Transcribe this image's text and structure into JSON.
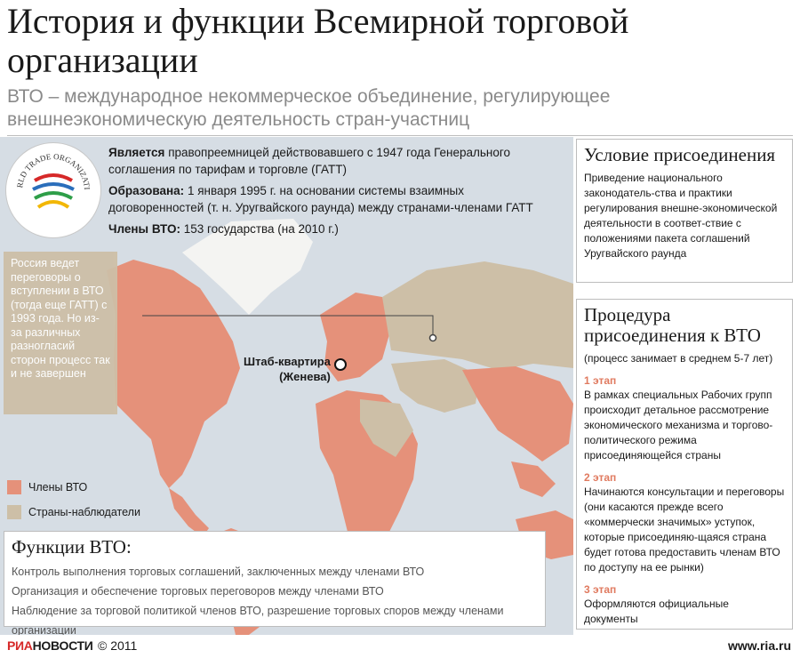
{
  "header": {
    "title": "История и функции Всемирной торговой организации",
    "subtitle": "ВТО – международное некоммерческое объединение, регулирующее внешнеэкономическую деятельность стран-участниц"
  },
  "info": {
    "successor_label": "Является",
    "successor_text": "правопреемницей действовавшего с 1947 года Генерального соглашения по тарифам и торговле (ГАТТ)",
    "founded_label": "Образована:",
    "founded_text": "1 января 1995 г. на основании системы взаимных договоренностей (т. н. Уругвайского раунда) между странами-членами ГАТТ",
    "members_label": "Члены ВТО:",
    "members_text": "153 государства (на 2010 г.)"
  },
  "logo": {
    "text": "WORLD TRADE ORGANIZATION"
  },
  "russia_note": "Россия ведет переговоры о вступлении в ВТО (тогда еще ГАТТ) с 1993 года. Но из-за различных разногласий сторон процесс так и не завершен",
  "hq": {
    "line1": "Штаб-квартира",
    "line2": "(Женева)"
  },
  "legend": {
    "members": "Члены ВТО",
    "observers": "Страны-наблюдатели",
    "members_color": "#e5917a",
    "observers_color": "#cdbfa7"
  },
  "functions": {
    "title": "Функции ВТО:",
    "items": [
      "Контроль выполнения торговых соглашений, заключенных между членами ВТО",
      "Организация и обеспечение торговых переговоров между членами ВТО",
      "Наблюдение за торговой политикой членов ВТО,  разрешение торговых споров между членами организации"
    ]
  },
  "accession": {
    "title": "Условие присоединения",
    "text": "Приведение национального законодатель-ства и практики регулирования внешне-экономической деятельности в соответ-ствие с положениями пакета соглашений Уругвайского раунда"
  },
  "procedure": {
    "title": "Процедура присоединения к ВТО",
    "note": "(процесс занимает в среднем 5-7 лет)",
    "stages": [
      {
        "label": "1 этап",
        "text": "В рамках специальных Рабочих групп происходит детальное рассмотрение экономического механизма и торгово-политического режима присоединяющейся страны"
      },
      {
        "label": "2 этап",
        "text": "Начинаются консультации и переговоры (они касаются прежде всего «коммерчески значимых» уступок, которые присоединяю-щаяся страна будет готова предоставить членам ВТО по доступу на ее рынки)"
      },
      {
        "label": "3 этап",
        "text": "Оформляются официальные документы"
      }
    ]
  },
  "footer": {
    "brand_red": "РИА",
    "brand_dark": "НОВОСТИ",
    "copyright": "© 2011",
    "site": "www.ria.ru"
  }
}
